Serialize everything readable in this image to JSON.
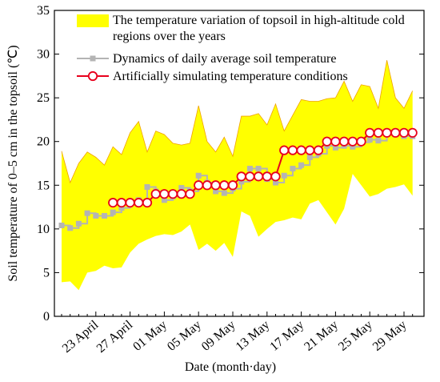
{
  "chart_data": {
    "type": "line",
    "xlabel": "Date (month·day)",
    "ylabel": "Soil temperature of 0–5 cm in the  topsoil (℃)",
    "categories": [
      null,
      null,
      null,
      null,
      "23 April",
      null,
      null,
      null,
      "27 April",
      null,
      null,
      null,
      "01 May",
      null,
      null,
      null,
      "05 May",
      null,
      null,
      null,
      "09 May",
      null,
      null,
      null,
      "13 May",
      null,
      null,
      null,
      "17 May",
      null,
      null,
      null,
      "21 May",
      null,
      null,
      null,
      "25 May",
      null,
      null,
      null,
      "29 May",
      null
    ],
    "ylim": [
      0,
      35
    ],
    "yticks": [
      0,
      5,
      10,
      15,
      20,
      25,
      30,
      35
    ],
    "band": {
      "name": "The temperature variation of topsoil in high-altitude cold regions over the years",
      "color": "#ffff00",
      "upper": [
        18.9,
        15.3,
        17.5,
        18.8,
        18.2,
        17.3,
        19.4,
        18.5,
        21.0,
        22.3,
        18.8,
        21.2,
        20.8,
        19.8,
        19.6,
        19.8,
        24.1,
        20.0,
        18.8,
        20.5,
        18.3,
        22.9,
        22.9,
        23.2,
        21.9,
        24.3,
        21.2,
        23.0,
        24.8,
        24.6,
        24.6,
        24.9,
        25.0,
        26.9,
        24.6,
        26.5,
        26.3,
        23.8,
        29.3,
        25.0,
        23.8,
        25.8
      ],
      "lower": [
        3.9,
        4.0,
        3.0,
        5.0,
        5.2,
        5.8,
        5.5,
        5.6,
        7.3,
        8.3,
        8.8,
        9.2,
        9.4,
        9.3,
        9.7,
        10.5,
        7.6,
        8.3,
        7.5,
        8.4,
        6.8,
        12.0,
        11.5,
        9.1,
        10.0,
        10.8,
        11.0,
        11.3,
        11.1,
        12.9,
        13.3,
        11.9,
        10.5,
        12.3,
        16.3,
        15.0,
        13.7,
        14.0,
        14.6,
        14.8,
        15.1,
        13.8
      ]
    },
    "series": [
      {
        "name": "Dynamics of daily average soil temperature",
        "color": "#b4b4b4",
        "marker": "square",
        "values": [
          10.4,
          10.1,
          10.6,
          11.8,
          11.5,
          11.5,
          11.9,
          12.4,
          12.8,
          13.3,
          14.8,
          14.3,
          13.3,
          13.7,
          14.7,
          14.3,
          16.1,
          15.3,
          14.3,
          14.1,
          14.6,
          15.4,
          16.9,
          16.9,
          15.7,
          15.3,
          16.1,
          16.9,
          17.3,
          18.2,
          18.6,
          19.5,
          19.3,
          19.5,
          19.4,
          19.9,
          20.2,
          20.1,
          20.9,
          20.8,
          20.6,
          20.6
        ]
      },
      {
        "name": "Artificially simulating temperature conditions",
        "color": "#e8001c",
        "marker": "circle",
        "values": [
          null,
          null,
          null,
          null,
          null,
          null,
          13,
          13,
          13,
          13,
          13,
          14,
          14,
          14,
          14,
          14,
          15,
          15,
          15,
          15,
          15,
          16,
          16,
          16,
          16,
          16,
          19,
          19,
          19,
          19,
          19,
          20,
          20,
          20,
          20,
          20,
          21,
          21,
          21,
          21,
          21,
          21
        ]
      }
    ]
  }
}
